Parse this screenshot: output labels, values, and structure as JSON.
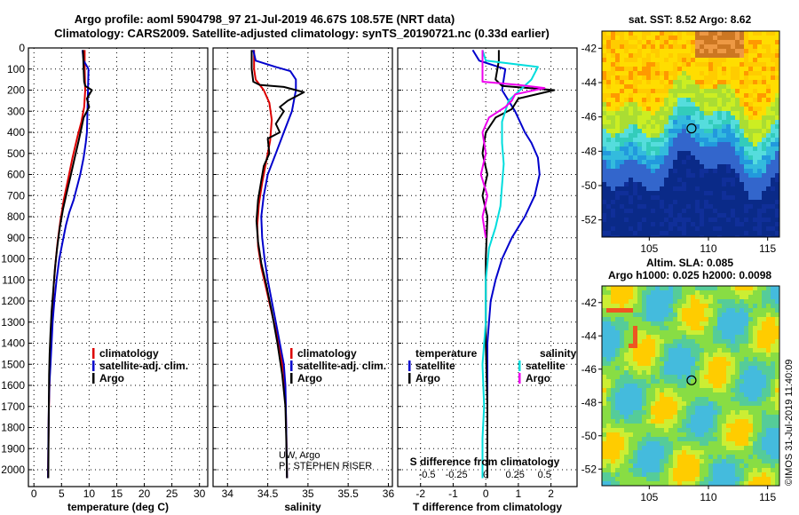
{
  "header": {
    "title_line1": "Argo profile: aoml 5904798_97 21-Jul-2019 46.67S 108.57E (NRT data)",
    "title_line2": "Climatology: CARS2009. Satellite-adjusted climatology: synTS_20190721.nc (0.33d earlier)"
  },
  "colors": {
    "climatology": "#dd0000",
    "satellite": "#0000cc",
    "argo": "#000000",
    "salinity_satellite": "#00dddd",
    "salinity_argo": "#ee00ee"
  },
  "chart_data": [
    {
      "type": "line",
      "id": "temperature",
      "xlabel": "temperature (deg C)",
      "ylabel": "",
      "xlim": [
        -1,
        31.5
      ],
      "ylim": [
        0,
        2080
      ],
      "y_inverted": true,
      "grid": true,
      "xticks": [
        0,
        5,
        10,
        15,
        20,
        25,
        30
      ],
      "yticks": [
        0,
        100,
        200,
        300,
        400,
        500,
        600,
        700,
        800,
        900,
        1000,
        1100,
        1200,
        1300,
        1400,
        1500,
        1600,
        1700,
        1800,
        1900,
        2000
      ],
      "legend": {
        "placement": "lower-center",
        "entries": [
          "climatology",
          "satellite-adj. clim.",
          "Argo"
        ]
      },
      "series": [
        {
          "name": "climatology",
          "color": "#dd0000",
          "x": [
            9.2,
            9.2,
            9.3,
            9.1,
            8.6,
            7.9,
            7.0,
            6.2,
            5.4,
            4.8,
            4.3,
            3.9,
            3.6,
            3.4,
            3.2,
            3.0,
            2.9,
            2.8,
            2.7,
            2.65,
            2.6,
            2.55
          ],
          "y": [
            10,
            100,
            200,
            280,
            350,
            420,
            520,
            620,
            720,
            820,
            920,
            1020,
            1120,
            1220,
            1320,
            1420,
            1520,
            1620,
            1720,
            1820,
            1920,
            2040
          ]
        },
        {
          "name": "satellite-adj. clim.",
          "color": "#0000cc",
          "x": [
            8.8,
            9.0,
            9.9,
            9.8,
            9.7,
            9.6,
            9.4,
            9.0,
            8.4,
            7.8,
            7.2,
            6.4,
            5.8,
            5.2,
            4.6,
            4.1,
            3.7,
            3.4,
            3.2,
            3.0,
            2.8,
            2.7,
            2.65,
            2.6,
            2.55
          ],
          "y": [
            10,
            60,
            100,
            200,
            300,
            400,
            450,
            520,
            600,
            660,
            720,
            780,
            840,
            920,
            1000,
            1100,
            1200,
            1300,
            1400,
            1500,
            1600,
            1700,
            1800,
            1900,
            2040
          ]
        },
        {
          "name": "Argo",
          "color": "#000000",
          "x": [
            8.9,
            9.0,
            9.1,
            9.3,
            10.5,
            9.6,
            10.0,
            9.0,
            8.6,
            8.1,
            7.4,
            6.7,
            6.0,
            5.3,
            4.7,
            4.2,
            3.8,
            3.5,
            3.2,
            3.0,
            2.85,
            2.75,
            2.7,
            2.65,
            2.6
          ],
          "y": [
            10,
            100,
            160,
            180,
            200,
            240,
            280,
            330,
            380,
            440,
            520,
            600,
            680,
            760,
            850,
            950,
            1050,
            1150,
            1250,
            1350,
            1450,
            1550,
            1700,
            1850,
            2040
          ]
        }
      ]
    },
    {
      "type": "line",
      "id": "salinity",
      "xlabel": "salinity",
      "ylabel": "",
      "xlim": [
        33.82,
        36.05
      ],
      "ylim": [
        0,
        2080
      ],
      "y_inverted": true,
      "grid": true,
      "xticks": [
        34,
        34.5,
        35,
        35.5,
        36
      ],
      "legend": {
        "placement": "lower-center",
        "entries": [
          "climatology",
          "satellite-adj. clim.",
          "Argo"
        ]
      },
      "annotations": [
        "UW, Argo",
        "PI: STEPHEN RISER"
      ],
      "series": [
        {
          "name": "climatology",
          "color": "#dd0000",
          "x": [
            34.33,
            34.33,
            34.35,
            34.45,
            34.52,
            34.55,
            34.53,
            34.48,
            34.43,
            34.39,
            34.37,
            34.38,
            34.42,
            34.48,
            34.54,
            34.6,
            34.65,
            34.7,
            34.72,
            34.73,
            34.74
          ],
          "y": [
            10,
            100,
            150,
            200,
            260,
            340,
            440,
            540,
            640,
            740,
            840,
            940,
            1040,
            1140,
            1240,
            1340,
            1440,
            1540,
            1640,
            1800,
            2040
          ]
        },
        {
          "name": "satellite-adj. clim.",
          "color": "#0000cc",
          "x": [
            34.32,
            34.35,
            34.6,
            34.78,
            34.85,
            34.85,
            34.8,
            34.7,
            34.6,
            34.5,
            34.45,
            34.42,
            34.43,
            34.46,
            34.5,
            34.55,
            34.6,
            34.65,
            34.7,
            34.72,
            34.73,
            34.74
          ],
          "y": [
            10,
            60,
            90,
            110,
            150,
            200,
            300,
            400,
            500,
            600,
            700,
            800,
            900,
            1000,
            1100,
            1200,
            1300,
            1400,
            1500,
            1600,
            1800,
            2040
          ]
        },
        {
          "name": "Argo",
          "color": "#000000",
          "x": [
            34.3,
            34.3,
            34.32,
            34.4,
            34.7,
            34.95,
            34.75,
            34.65,
            34.7,
            34.6,
            34.65,
            34.5,
            34.52,
            34.45,
            34.42,
            34.38,
            34.36,
            34.38,
            34.42,
            34.48,
            34.55,
            34.62,
            34.68,
            34.72,
            34.73,
            34.74
          ],
          "y": [
            10,
            100,
            160,
            175,
            185,
            210,
            250,
            280,
            300,
            360,
            400,
            430,
            500,
            560,
            630,
            720,
            820,
            920,
            1020,
            1120,
            1250,
            1400,
            1550,
            1700,
            1850,
            2040
          ]
        }
      ]
    },
    {
      "type": "line",
      "id": "difference",
      "xlabel": "T difference from climatology",
      "xlabel_top": "S difference from climatology",
      "ylabel": "",
      "xlim": [
        -2.7,
        2.8
      ],
      "ylim": [
        0,
        2080
      ],
      "y_inverted": true,
      "grid": true,
      "xticks": [
        -2,
        -1,
        0,
        1,
        2
      ],
      "xticks_salinity": [
        "-0.5",
        "-0.25",
        "0",
        "0.25",
        "0.5"
      ],
      "legend": {
        "placement": "lower-center",
        "temperature_header": "temperature",
        "salinity_header": "salinity",
        "entries": [
          "satellite",
          "Argo",
          "satellite",
          "Argo"
        ]
      },
      "series": [
        {
          "name": "temperature satellite",
          "color": "#0000cc",
          "x": [
            -0.4,
            -0.2,
            0.6,
            0.5,
            0.9,
            1.2,
            1.4,
            1.6,
            1.65,
            1.5,
            1.2,
            0.8,
            0.5,
            0.3,
            0.15,
            0.1,
            0.05,
            0.05,
            0.05
          ],
          "y": [
            10,
            60,
            100,
            200,
            300,
            400,
            450,
            520,
            600,
            700,
            800,
            900,
            1000,
            1100,
            1200,
            1300,
            1400,
            1600,
            2040
          ]
        },
        {
          "name": "temperature Argo",
          "color": "#000000",
          "x": [
            0.4,
            0.4,
            0.3,
            0.5,
            2.1,
            1.0,
            0.8,
            0.3,
            0.0,
            -0.1,
            0.05,
            -0.1,
            0.05,
            0.0,
            0.0,
            0.0,
            0.05,
            0.05
          ],
          "y": [
            10,
            60,
            150,
            180,
            200,
            240,
            290,
            330,
            400,
            500,
            600,
            700,
            800,
            1000,
            1200,
            1400,
            1700,
            2040
          ]
        },
        {
          "name": "salinity satellite",
          "color": "#00dddd",
          "x": [
            -0.1,
            0.0,
            1.6,
            1.4,
            0.7,
            0.5,
            0.5,
            0.55,
            0.5,
            0.45,
            0.3,
            0.1,
            0.0,
            0.0,
            -0.1,
            -0.05,
            -0.1,
            -0.1
          ],
          "y": [
            10,
            60,
            90,
            150,
            250,
            350,
            450,
            550,
            650,
            750,
            850,
            950,
            1100,
            1300,
            1500,
            1700,
            1850,
            2040
          ]
        },
        {
          "name": "salinity Argo",
          "color": "#ee00ee",
          "x": [
            -0.1,
            -0.1,
            -0.1,
            1.0,
            1.8,
            0.9,
            0.8,
            0.6,
            0.1,
            -0.1,
            0.0,
            -0.15,
            0.05,
            -0.1,
            0.0
          ],
          "y": [
            10,
            60,
            160,
            175,
            190,
            220,
            250,
            280,
            330,
            400,
            500,
            600,
            700,
            800,
            900
          ]
        }
      ]
    },
    {
      "type": "heatmap",
      "id": "sst_map",
      "title": "sat. SST: 8.52 Argo: 8.62",
      "xlim": [
        101,
        116
      ],
      "ylim": [
        -53,
        -41
      ],
      "xticks": [
        105,
        110,
        115
      ],
      "yticks": [
        -42,
        -44,
        -46,
        -48,
        -50,
        -52
      ],
      "marker": {
        "lon": 108.57,
        "lat": -46.67
      }
    },
    {
      "type": "heatmap",
      "id": "sla_map",
      "title": "Altim. SLA: 0.085",
      "subtitle": "Argo h1000: 0.025 h2000: 0.0098",
      "xlim": [
        101,
        116
      ],
      "ylim": [
        -53,
        -41
      ],
      "xticks": [
        105,
        110,
        115
      ],
      "yticks": [
        -42,
        -44,
        -46,
        -48,
        -50,
        -52
      ],
      "marker": {
        "lon": 108.57,
        "lat": -46.67
      }
    }
  ],
  "footer": {
    "credit": "©IMOS 31-Jul-2019 11:40:09"
  }
}
